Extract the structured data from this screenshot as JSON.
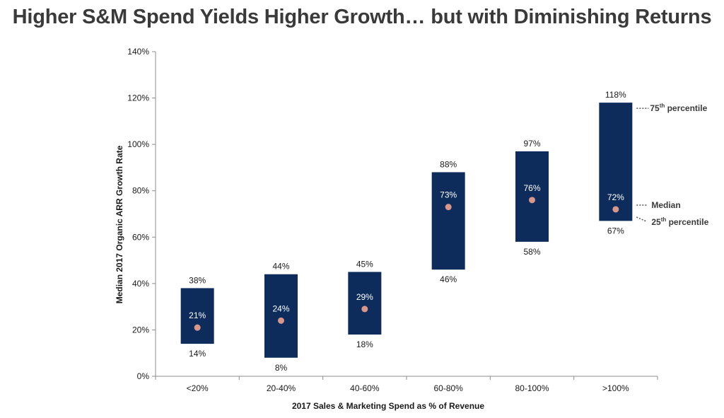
{
  "title": "Higher S&M Spend Yields Higher Growth… but with Diminishing Returns",
  "chart_data": {
    "type": "range-bar",
    "categories": [
      "<20%",
      "20-40%",
      "40-60%",
      "60-80%",
      "80-100%",
      ">100%"
    ],
    "series": [
      {
        "name": "75th percentile",
        "values": [
          38,
          44,
          45,
          88,
          97,
          118
        ]
      },
      {
        "name": "Median",
        "values": [
          21,
          24,
          29,
          73,
          76,
          72
        ]
      },
      {
        "name": "25th percentile",
        "values": [
          14,
          8,
          18,
          46,
          58,
          67
        ]
      }
    ],
    "value_labels": {
      "top": [
        "38%",
        "44%",
        "45%",
        "88%",
        "97%",
        "118%"
      ],
      "median": [
        "21%",
        "24%",
        "29%",
        "73%",
        "76%",
        "72%"
      ],
      "bottom": [
        "14%",
        "8%",
        "18%",
        "46%",
        "58%",
        "67%"
      ]
    },
    "xlabel": "2017 Sales & Marketing Spend as % of Revenue",
    "ylabel": "Median 2017 Organic ARR Growth Rate",
    "ylim": [
      0,
      140
    ],
    "yticks": [
      0,
      20,
      40,
      60,
      80,
      100,
      120,
      140
    ],
    "ytick_labels": [
      "0%",
      "20%",
      "40%",
      "60%",
      "80%",
      "100%",
      "120%",
      "140%"
    ],
    "grid": false,
    "legend": {
      "placement": "right",
      "p75": {
        "prefix": "75",
        "sup": "th",
        "suffix": " percentile"
      },
      "median": {
        "text": "Median"
      },
      "p25": {
        "prefix": "25",
        "sup": "th",
        "suffix": " percentile"
      }
    },
    "colors": {
      "bar": "#0d2c5c",
      "median_dot": "#d9968a",
      "text": "#1a1a1a",
      "axis": "#8c8c8c",
      "legend_line": "#555555"
    }
  }
}
